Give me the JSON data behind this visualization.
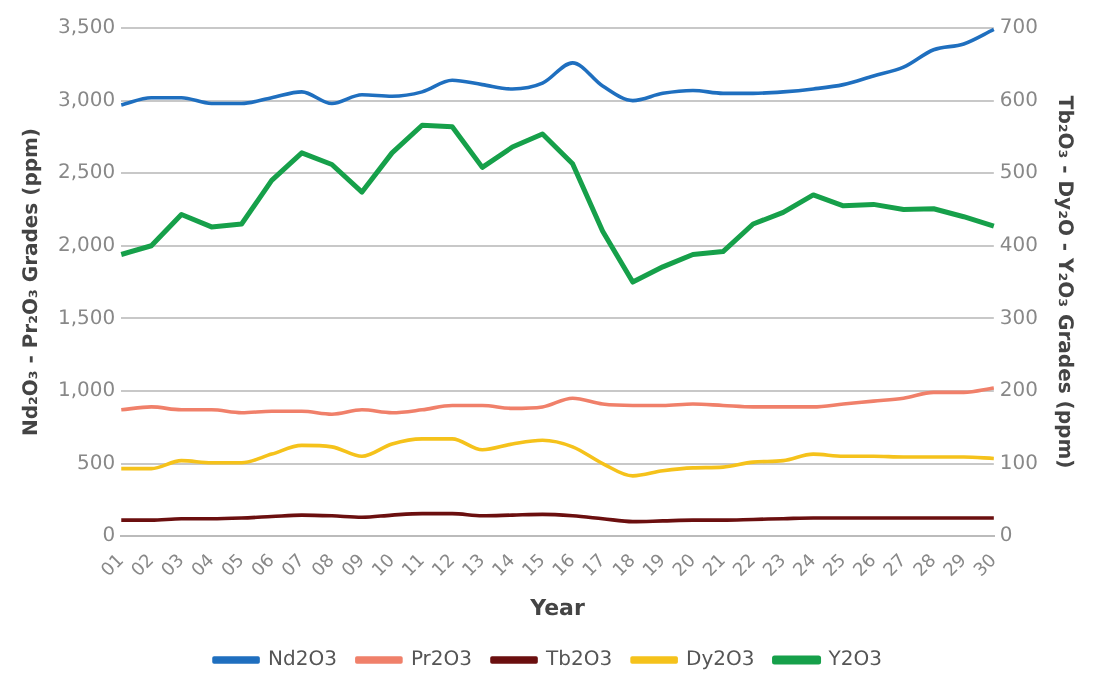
{
  "chart_data": {
    "type": "line",
    "xlabel": "Year",
    "ylabel": "Nd₂O₃ - Pr₂O₃ Grades (ppm)",
    "y2label": "Tb₂O₃ - Dy₂O - Y₂O₃ Grades (ppm)",
    "categories": [
      "01",
      "02",
      "03",
      "04",
      "05",
      "06",
      "07",
      "08",
      "09",
      "10",
      "11",
      "12",
      "13",
      "14",
      "15",
      "16",
      "17",
      "18",
      "19",
      "20",
      "21",
      "22",
      "23",
      "24",
      "25",
      "26",
      "27",
      "28",
      "29",
      "30"
    ],
    "series": [
      {
        "name": "Nd2O3",
        "color": "#1f6fbf",
        "values": [
          2970,
          3020,
          3020,
          2980,
          2980,
          3020,
          3060,
          2980,
          3040,
          3030,
          3060,
          3140,
          3110,
          3080,
          3120,
          3260,
          3100,
          3000,
          3050,
          3070,
          3050,
          3050,
          3060,
          3080,
          3110,
          3170,
          3230,
          3350,
          3390,
          3490
        ]
      },
      {
        "name": "Pr2O3",
        "color": "#f0806a",
        "values": [
          870,
          890,
          870,
          870,
          850,
          860,
          860,
          840,
          870,
          850,
          870,
          900,
          900,
          880,
          890,
          950,
          910,
          900,
          900,
          910,
          900,
          890,
          890,
          890,
          910,
          930,
          950,
          990,
          990,
          1020
        ]
      },
      {
        "name": "Tb2O3",
        "color": "#6b0f0f",
        "axis": "y2",
        "values": [
          22,
          22,
          24,
          24,
          25,
          27,
          29,
          28,
          26,
          29,
          31,
          31,
          28,
          29,
          30,
          28,
          24,
          20,
          21,
          22,
          22,
          23,
          24,
          25,
          25,
          25,
          25,
          25,
          25,
          25
        ]
      },
      {
        "name": "Dy2O3",
        "color": "#f5c21b",
        "axis": "y2",
        "values": [
          93,
          93,
          104,
          101,
          101,
          113,
          125,
          123,
          110,
          127,
          134,
          134,
          119,
          127,
          132,
          123,
          100,
          83,
          90,
          94,
          95,
          102,
          104,
          113,
          110,
          110,
          109,
          109,
          109,
          107
        ]
      },
      {
        "name": "Y2O3",
        "color": "#16a04a",
        "axis": "y2",
        "values": [
          388,
          400,
          443,
          426,
          430,
          490,
          528,
          512,
          474,
          528,
          566,
          564,
          508,
          536,
          554,
          513,
          420,
          350,
          371,
          388,
          392,
          430,
          446,
          470,
          455,
          457,
          450,
          451,
          440,
          427
        ]
      }
    ],
    "ylim": [
      0,
      3500
    ],
    "yticks": [
      0,
      {
        "value": 500,
        "label": "500"
      },
      {
        "value": 1000,
        "label": "1,000"
      },
      {
        "value": 1500,
        "label": "1,500"
      },
      {
        "value": 2000,
        "label": "2,000"
      },
      {
        "value": 2500,
        "label": "2,500"
      },
      {
        "value": 3000,
        "label": "3,000"
      },
      {
        "value": 3500,
        "label": "3,500"
      }
    ],
    "y2lim": [
      0,
      700
    ],
    "y2ticks": [
      0,
      100,
      200,
      300,
      400,
      500,
      600,
      700
    ],
    "grid": "y",
    "legend": "bottom",
    "marker": "none",
    "line_style": "solid"
  }
}
